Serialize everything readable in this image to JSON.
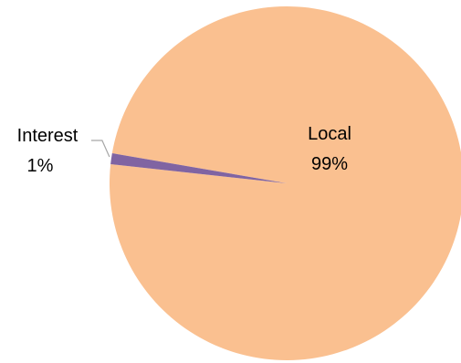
{
  "chart_data": {
    "type": "pie",
    "title": "",
    "slices": [
      {
        "label": "Local",
        "value": 99,
        "percent_label": "99%",
        "color": "#FAC090"
      },
      {
        "label": "Interest",
        "value": 1,
        "percent_label": "1%",
        "color": "#8064A2"
      }
    ],
    "legend": "none",
    "data_labels": "category and percent"
  }
}
